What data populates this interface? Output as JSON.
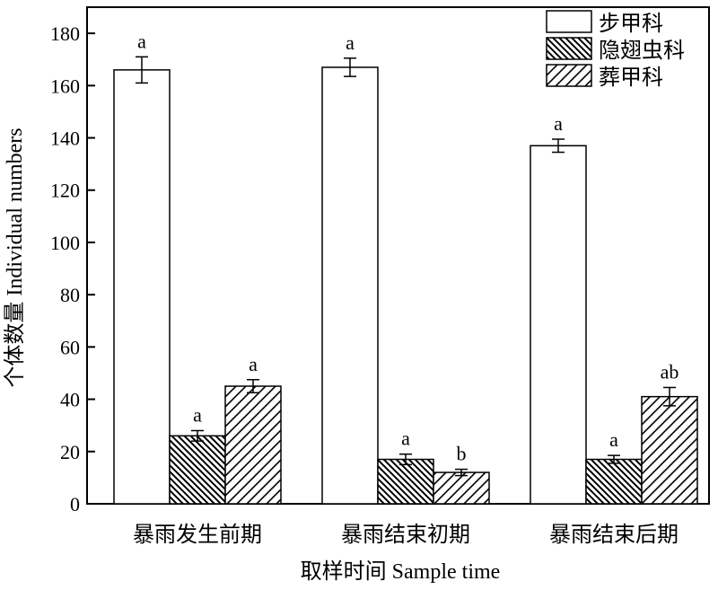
{
  "chart_data": {
    "type": "bar",
    "title": "",
    "xlabel": "取样时间 Sample time",
    "ylabel": "个体数量 Individual numbers",
    "ylim": [
      0,
      190
    ],
    "yticks": [
      0,
      20,
      40,
      60,
      80,
      100,
      120,
      140,
      160,
      180
    ],
    "categories": [
      "暴雨发生前期",
      "暴雨结束初期",
      "暴雨结束后期"
    ],
    "legend_position": "top-right",
    "grid": false,
    "series": [
      {
        "name": "步甲科",
        "pattern": "none",
        "values": [
          166,
          167,
          137
        ],
        "errors": [
          5,
          3.5,
          2.5
        ],
        "labels": [
          "a",
          "a",
          "a"
        ]
      },
      {
        "name": "隐翅虫科",
        "pattern": "backslash-hatch",
        "values": [
          26,
          17,
          17
        ],
        "errors": [
          2,
          2,
          1.5
        ],
        "labels": [
          "a",
          "a",
          "a"
        ]
      },
      {
        "name": "葬甲科",
        "pattern": "slash-hatch",
        "values": [
          45,
          12,
          41
        ],
        "errors": [
          2.5,
          1.2,
          3.5
        ],
        "labels": [
          "a",
          "b",
          "ab"
        ]
      }
    ]
  }
}
